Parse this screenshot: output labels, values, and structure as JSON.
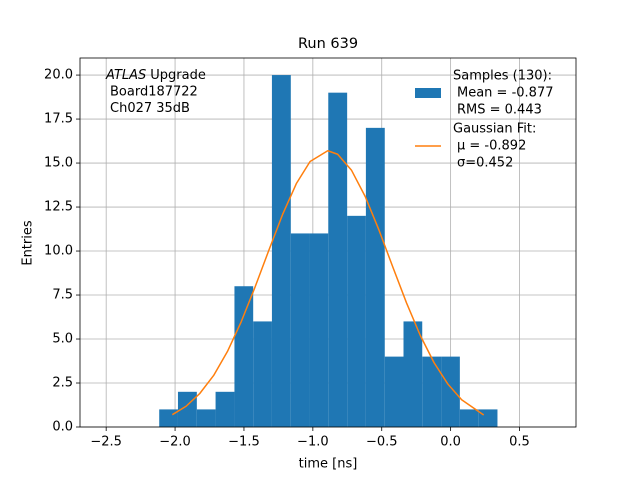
{
  "chart_data": {
    "type": "histogram",
    "title": "Run 639",
    "xlabel": "time [ns]",
    "ylabel": "Entries",
    "annotation": [
      [
        "ATLAS",
        "Upgrade"
      ],
      [
        "Board187722"
      ],
      [
        "Ch027 35dB"
      ]
    ],
    "bins": [
      -2.115,
      -1.979,
      -1.842,
      -1.706,
      -1.569,
      -1.433,
      -1.297,
      -1.16,
      -1.024,
      -0.888,
      -0.751,
      -0.615,
      -0.478,
      -0.342,
      -0.206,
      -0.069,
      0.067,
      0.204,
      0.34
    ],
    "series": [
      {
        "name": [
          "Samples (130):",
          "Mean = -0.877",
          "RMS = 0.443"
        ],
        "color": "#1f77b4",
        "values": [
          1,
          2,
          1,
          2,
          8,
          6,
          20,
          11,
          11,
          19,
          12,
          17,
          4,
          6,
          4,
          4,
          1,
          1
        ]
      },
      {
        "name": [
          "Gaussian Fit:",
          "μ = -0.892",
          "σ=0.452"
        ],
        "color": "#ff7f0e",
        "type": "line",
        "x": [
          -2.02,
          -1.92,
          -1.82,
          -1.72,
          -1.62,
          -1.52,
          -1.42,
          -1.32,
          -1.22,
          -1.12,
          -1.02,
          -0.892,
          -0.82,
          -0.72,
          -0.62,
          -0.52,
          -0.42,
          -0.32,
          -0.22,
          -0.12,
          -0.02,
          0.08,
          0.24
        ],
        "values": [
          0.7,
          1.18,
          1.91,
          2.93,
          4.29,
          5.98,
          7.94,
          10.03,
          12.07,
          13.83,
          15.09,
          15.7,
          15.5,
          14.6,
          13.1,
          11.19,
          9.1,
          7.05,
          5.2,
          3.65,
          2.44,
          1.55,
          0.68
        ]
      }
    ],
    "xlim": [
      -2.69,
      0.91
    ],
    "ylim": [
      0,
      20.97
    ],
    "xticks": [
      {
        "value": -2.5,
        "label": "−2.5"
      },
      {
        "value": -2,
        "label": "−2.0"
      },
      {
        "value": -1.5,
        "label": "−1.5"
      },
      {
        "value": -1,
        "label": "−1.0"
      },
      {
        "value": -0.5,
        "label": "−0.5"
      },
      {
        "value": 0,
        "label": "0.0"
      },
      0.5
    ],
    "yticks": [
      {
        "value": 0,
        "label": "0.0"
      },
      2.5,
      {
        "value": 5,
        "label": "5.0"
      },
      7.5,
      {
        "value": 10,
        "label": "10.0"
      },
      12.5,
      {
        "value": 15,
        "label": "15.0"
      },
      17.5,
      {
        "value": 20,
        "label": "20.0"
      }
    ],
    "grid": true,
    "legend": "upper right"
  }
}
